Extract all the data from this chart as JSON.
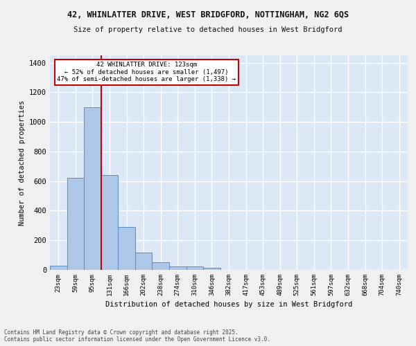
{
  "title1": "42, WHINLATTER DRIVE, WEST BRIDGFORD, NOTTINGHAM, NG2 6QS",
  "title2": "Size of property relative to detached houses in West Bridgford",
  "xlabel": "Distribution of detached houses by size in West Bridgford",
  "ylabel": "Number of detached properties",
  "categories": [
    "23sqm",
    "59sqm",
    "95sqm",
    "131sqm",
    "166sqm",
    "202sqm",
    "238sqm",
    "274sqm",
    "310sqm",
    "346sqm",
    "382sqm",
    "417sqm",
    "453sqm",
    "489sqm",
    "525sqm",
    "561sqm",
    "597sqm",
    "632sqm",
    "668sqm",
    "704sqm",
    "740sqm"
  ],
  "values": [
    28,
    620,
    1100,
    640,
    290,
    118,
    50,
    25,
    22,
    14,
    0,
    0,
    0,
    0,
    0,
    0,
    0,
    0,
    0,
    0,
    0
  ],
  "bar_color": "#aec6e8",
  "bar_edge_color": "#5a8fc2",
  "vline_color": "#cc0000",
  "annotation_text": "42 WHINLATTER DRIVE: 123sqm\n← 52% of detached houses are smaller (1,497)\n47% of semi-detached houses are larger (1,338) →",
  "annotation_box_color": "#ffffff",
  "annotation_box_edge": "#cc0000",
  "ylim": [
    0,
    1450
  ],
  "yticks": [
    0,
    200,
    400,
    600,
    800,
    1000,
    1200,
    1400
  ],
  "background_color": "#dce8f5",
  "grid_color": "#ffffff",
  "fig_background": "#f0f0f0",
  "footer1": "Contains HM Land Registry data © Crown copyright and database right 2025.",
  "footer2": "Contains public sector information licensed under the Open Government Licence v3.0."
}
